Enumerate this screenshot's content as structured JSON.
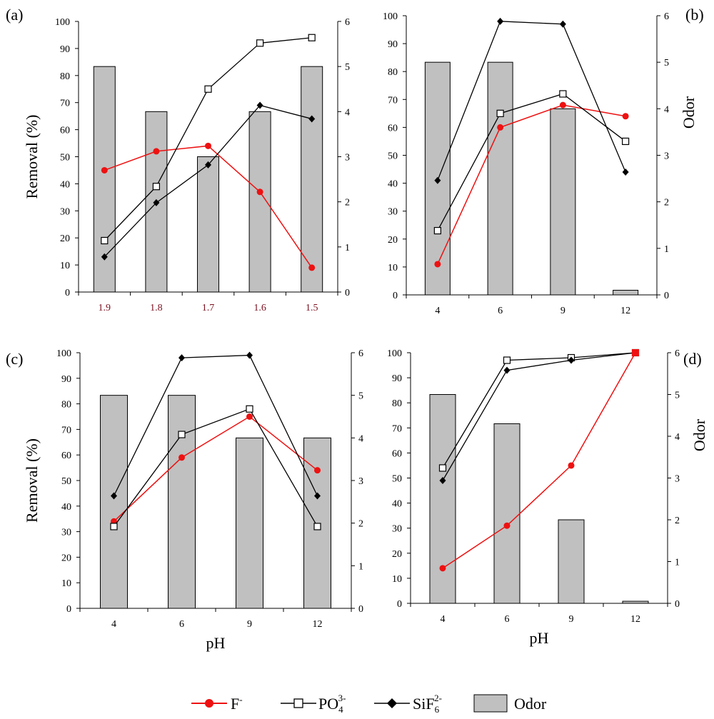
{
  "chart_data": [
    {
      "type": "bar",
      "panel": "(a)",
      "categories": [
        "1.9",
        "1.8",
        "1.7",
        "1.6",
        "1.5"
      ],
      "ylabel": "Removal (%)",
      "y2label": "",
      "xlabel": "",
      "ylim": [
        0,
        100
      ],
      "y2lim": [
        0,
        6
      ],
      "yticks": [
        "0",
        "10",
        "20",
        "30",
        "40",
        "50",
        "60",
        "70",
        "80",
        "90",
        "100"
      ],
      "y2ticks": [
        "0",
        "1",
        "2",
        "3",
        "4",
        "5",
        "6"
      ],
      "series": [
        {
          "name": "F-",
          "axis": "left",
          "marker": "red-circle",
          "values": [
            45,
            52,
            54,
            37,
            9
          ]
        },
        {
          "name": "PO4 3-",
          "axis": "left",
          "marker": "open-square",
          "values": [
            19,
            39,
            75,
            92,
            94
          ]
        },
        {
          "name": "SiF6 2-",
          "axis": "left",
          "marker": "diamond",
          "values": [
            13,
            33,
            47,
            69,
            64
          ]
        },
        {
          "name": "Odor",
          "axis": "right",
          "marker": "bar",
          "values": [
            5,
            4,
            3,
            4,
            5
          ]
        }
      ]
    },
    {
      "type": "bar",
      "panel": "(b)",
      "categories": [
        "4",
        "6",
        "9",
        "12"
      ],
      "ylabel": "",
      "y2label": "Odor",
      "xlabel": "",
      "ylim": [
        0,
        100
      ],
      "y2lim": [
        0,
        6
      ],
      "yticks": [
        "0",
        "10",
        "20",
        "30",
        "40",
        "50",
        "60",
        "70",
        "80",
        "90",
        "100"
      ],
      "y2ticks": [
        "0",
        "1",
        "2",
        "3",
        "4",
        "5",
        "6"
      ],
      "series": [
        {
          "name": "F-",
          "axis": "left",
          "marker": "red-circle",
          "values": [
            11,
            60,
            68,
            64
          ]
        },
        {
          "name": "PO4 3-",
          "axis": "left",
          "marker": "open-square",
          "values": [
            23,
            65,
            72,
            55
          ]
        },
        {
          "name": "SiF6 2-",
          "axis": "left",
          "marker": "diamond",
          "values": [
            41,
            98,
            97,
            44
          ]
        },
        {
          "name": "Odor",
          "axis": "right",
          "marker": "bar",
          "values": [
            5,
            5,
            4,
            0.1
          ]
        }
      ]
    },
    {
      "type": "bar",
      "panel": "(c)",
      "categories": [
        "4",
        "6",
        "9",
        "12"
      ],
      "ylabel": "Removal (%)",
      "y2label": "",
      "xlabel": "pH",
      "ylim": [
        0,
        100
      ],
      "y2lim": [
        0,
        6
      ],
      "yticks": [
        "0",
        "10",
        "20",
        "30",
        "40",
        "50",
        "60",
        "70",
        "80",
        "90",
        "100"
      ],
      "y2ticks": [
        "0",
        "1",
        "2",
        "3",
        "4",
        "5",
        "6"
      ],
      "series": [
        {
          "name": "F-",
          "axis": "left",
          "marker": "red-circle",
          "values": [
            34,
            59,
            75,
            54
          ]
        },
        {
          "name": "PO4 3-",
          "axis": "left",
          "marker": "open-square",
          "values": [
            32,
            68,
            78,
            32
          ]
        },
        {
          "name": "SiF6 2-",
          "axis": "left",
          "marker": "diamond",
          "values": [
            44,
            98,
            99,
            44
          ]
        },
        {
          "name": "Odor",
          "axis": "right",
          "marker": "bar",
          "values": [
            5,
            5,
            4,
            4
          ]
        }
      ]
    },
    {
      "type": "bar",
      "panel": "(d)",
      "categories": [
        "4",
        "6",
        "9",
        "12"
      ],
      "ylabel": "",
      "y2label": "Odor",
      "xlabel": "pH",
      "ylim": [
        0,
        100
      ],
      "y2lim": [
        0,
        6
      ],
      "yticks": [
        "0",
        "10",
        "20",
        "30",
        "40",
        "50",
        "60",
        "70",
        "80",
        "90",
        "100"
      ],
      "y2ticks": [
        "0",
        "1",
        "2",
        "3",
        "4",
        "5",
        "6"
      ],
      "series": [
        {
          "name": "F-",
          "axis": "left",
          "marker": "red-circle",
          "values": [
            14,
            31,
            55,
            100
          ]
        },
        {
          "name": "PO4 3-",
          "axis": "left",
          "marker": "open-square",
          "values": [
            54,
            97,
            98,
            100
          ]
        },
        {
          "name": "SiF6 2-",
          "axis": "left",
          "marker": "diamond",
          "values": [
            49,
            93,
            97,
            100
          ]
        },
        {
          "name": "Odor",
          "axis": "right",
          "marker": "bar",
          "values": [
            5,
            4.3,
            2,
            0.05
          ]
        }
      ]
    }
  ],
  "legend": {
    "f_label": "F",
    "f_sup": "-",
    "po4_label": "PO",
    "po4_sub": "4",
    "po4_sup": "3-",
    "sif6_label": "SiF",
    "sif6_sub": "6",
    "sif6_sup": "2-",
    "odor_label": "Odor"
  },
  "colors": {
    "f_series": "#ee1111",
    "bar_fill": "#c0c0c0",
    "line": "#000000",
    "category_tick_a": "#7a1020"
  }
}
